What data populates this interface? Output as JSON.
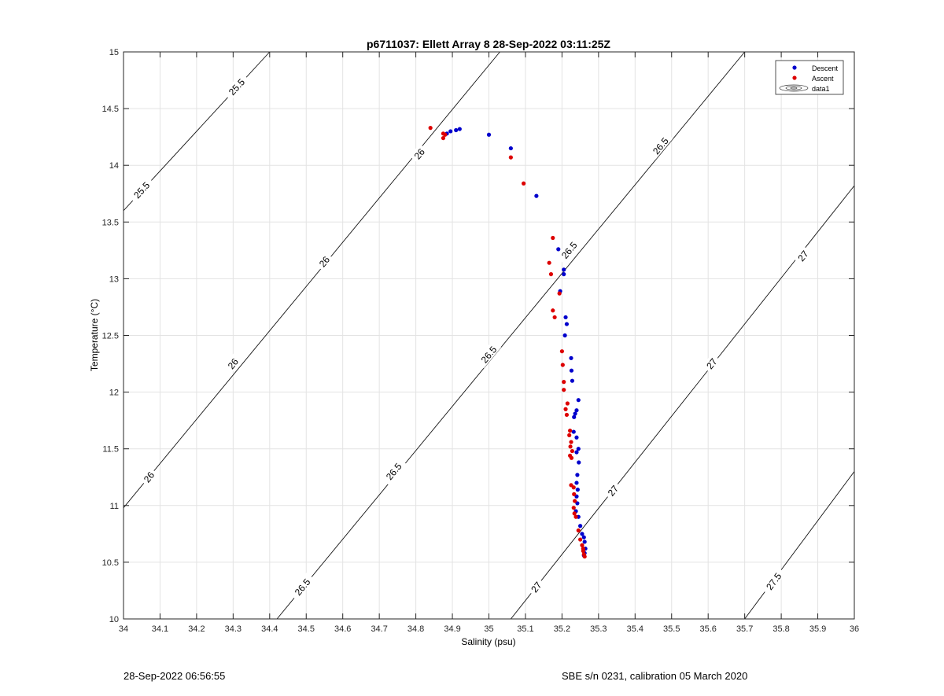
{
  "chart_data": {
    "type": "scatter",
    "title": "p6711037: Ellett Array 8 28-Sep-2022 03:11:25Z",
    "xlabel": "Salinity (psu)",
    "ylabel": "Temperature (°C)",
    "xlim": [
      34,
      36
    ],
    "ylim": [
      10,
      15
    ],
    "xticks": [
      34,
      34.1,
      34.2,
      34.3,
      34.4,
      34.5,
      34.6,
      34.7,
      34.8,
      34.9,
      35,
      35.1,
      35.2,
      35.3,
      35.4,
      35.5,
      35.6,
      35.7,
      35.8,
      35.9,
      36
    ],
    "xtick_labels": [
      "34",
      "34.1",
      "34.2",
      "34.3",
      "34.4",
      "34.5",
      "34.6",
      "34.7",
      "34.8",
      "34.9",
      "35",
      "35.1",
      "35.2",
      "35.3",
      "35.4",
      "35.5",
      "35.6",
      "35.7",
      "35.8",
      "35.9",
      "36"
    ],
    "yticks": [
      10,
      10.5,
      11,
      11.5,
      12,
      12.5,
      13,
      13.5,
      14,
      14.5,
      15
    ],
    "ytick_labels": [
      "10",
      "10.5",
      "11",
      "11.5",
      "12",
      "12.5",
      "13",
      "13.5",
      "14",
      "14.5",
      "15"
    ],
    "grid": true,
    "legend_position": "top-right",
    "legend": [
      "Descent",
      "Ascent",
      "data1"
    ],
    "series": [
      {
        "name": "Descent",
        "color": "#0000cc",
        "points": [
          [
            34.885,
            14.28
          ],
          [
            34.895,
            14.3
          ],
          [
            34.91,
            14.31
          ],
          [
            34.92,
            14.32
          ],
          [
            35.0,
            14.27
          ],
          [
            35.06,
            14.15
          ],
          [
            35.13,
            13.73
          ],
          [
            35.19,
            13.26
          ],
          [
            35.205,
            13.08
          ],
          [
            35.205,
            13.04
          ],
          [
            35.195,
            12.89
          ],
          [
            35.21,
            12.66
          ],
          [
            35.213,
            12.6
          ],
          [
            35.208,
            12.5
          ],
          [
            35.225,
            12.3
          ],
          [
            35.226,
            12.19
          ],
          [
            35.228,
            12.1
          ],
          [
            35.245,
            11.93
          ],
          [
            35.24,
            11.84
          ],
          [
            35.236,
            11.81
          ],
          [
            35.233,
            11.78
          ],
          [
            35.232,
            11.65
          ],
          [
            35.24,
            11.6
          ],
          [
            35.245,
            11.5
          ],
          [
            35.24,
            11.47
          ],
          [
            35.246,
            11.38
          ],
          [
            35.242,
            11.27
          ],
          [
            35.24,
            11.2
          ],
          [
            35.243,
            11.14
          ],
          [
            35.24,
            11.08
          ],
          [
            35.242,
            11.02
          ],
          [
            35.238,
            10.95
          ],
          [
            35.245,
            10.9
          ],
          [
            35.25,
            10.82
          ],
          [
            35.255,
            10.75
          ],
          [
            35.26,
            10.72
          ],
          [
            35.262,
            10.68
          ],
          [
            35.264,
            10.62
          ],
          [
            35.262,
            10.58
          ],
          [
            35.26,
            10.56
          ]
        ]
      },
      {
        "name": "Ascent",
        "color": "#dd0000",
        "points": [
          [
            34.84,
            14.33
          ],
          [
            34.875,
            14.24
          ],
          [
            34.875,
            14.28
          ],
          [
            34.88,
            14.27
          ],
          [
            35.06,
            14.07
          ],
          [
            35.095,
            13.84
          ],
          [
            35.175,
            13.36
          ],
          [
            35.165,
            13.14
          ],
          [
            35.17,
            13.04
          ],
          [
            35.193,
            12.87
          ],
          [
            35.175,
            12.72
          ],
          [
            35.18,
            12.66
          ],
          [
            35.2,
            12.36
          ],
          [
            35.202,
            12.24
          ],
          [
            35.205,
            12.09
          ],
          [
            35.205,
            12.02
          ],
          [
            35.215,
            11.9
          ],
          [
            35.21,
            11.85
          ],
          [
            35.213,
            11.8
          ],
          [
            35.222,
            11.66
          ],
          [
            35.22,
            11.62
          ],
          [
            35.225,
            11.56
          ],
          [
            35.223,
            11.52
          ],
          [
            35.228,
            11.48
          ],
          [
            35.222,
            11.44
          ],
          [
            35.226,
            11.42
          ],
          [
            35.225,
            11.18
          ],
          [
            35.232,
            11.16
          ],
          [
            35.233,
            11.1
          ],
          [
            35.235,
            11.04
          ],
          [
            35.232,
            10.98
          ],
          [
            35.234,
            10.93
          ],
          [
            35.238,
            10.9
          ],
          [
            35.245,
            10.78
          ],
          [
            35.25,
            10.7
          ],
          [
            35.255,
            10.65
          ],
          [
            35.258,
            10.6
          ],
          [
            35.26,
            10.57
          ],
          [
            35.262,
            10.55
          ],
          [
            35.258,
            10.62
          ]
        ]
      }
    ],
    "isopycnals": [
      {
        "label": "25.5",
        "points": [
          [
            34.0,
            13.6
          ],
          [
            34.4,
            15.0
          ]
        ],
        "label_at": [
          [
            34.05,
            13.78
          ],
          [
            34.31,
            14.69
          ]
        ]
      },
      {
        "label": "26",
        "points": [
          [
            34.0,
            10.98
          ],
          [
            35.03,
            15.0
          ]
        ],
        "label_at": [
          [
            34.07,
            11.25
          ],
          [
            34.3,
            12.25
          ],
          [
            34.55,
            13.15
          ],
          [
            34.81,
            14.1
          ]
        ]
      },
      {
        "label": "26.5",
        "points": [
          [
            34.42,
            10.0
          ],
          [
            35.7,
            15.0
          ]
        ],
        "label_at": [
          [
            34.49,
            10.28
          ],
          [
            34.74,
            11.3
          ],
          [
            35.0,
            12.33
          ],
          [
            35.22,
            13.25
          ],
          [
            35.47,
            14.17
          ]
        ]
      },
      {
        "label": "27",
        "points": [
          [
            35.06,
            10.0
          ],
          [
            36.0,
            13.82
          ]
        ],
        "label_at": [
          [
            35.13,
            10.28
          ],
          [
            35.34,
            11.13
          ],
          [
            35.61,
            12.25
          ],
          [
            35.86,
            13.2
          ]
        ]
      },
      {
        "label": "27.5",
        "points": [
          [
            35.7,
            10.0
          ],
          [
            36.0,
            11.3
          ]
        ],
        "label_at": [
          [
            35.78,
            10.33
          ]
        ]
      }
    ]
  },
  "footer": {
    "timestamp": "28-Sep-2022 06:56:55",
    "calibration": "SBE s/n 0231, calibration 05 March 2020"
  }
}
